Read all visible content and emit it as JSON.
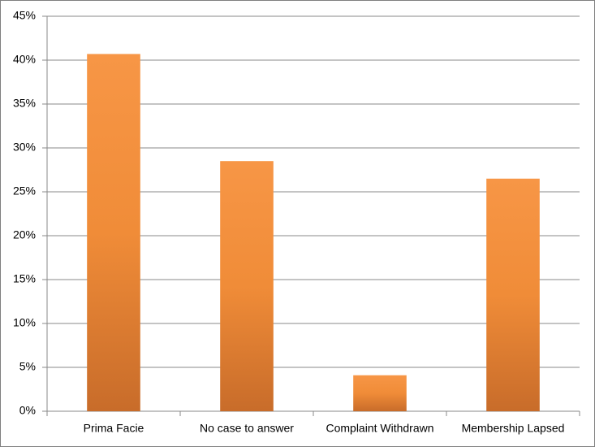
{
  "chart_data": {
    "type": "bar",
    "categories": [
      "Prima Facie",
      "No case to answer",
      "Complaint Withdrawn",
      "Membership Lapsed"
    ],
    "values": [
      40.7,
      28.5,
      4.1,
      26.5
    ],
    "color": "#f79646",
    "ylim": [
      0,
      45
    ],
    "yticks": [
      {
        "value": 0,
        "label": "0%"
      },
      {
        "value": 5,
        "label": "5%"
      },
      {
        "value": 10,
        "label": "10%"
      },
      {
        "value": 15,
        "label": "15%"
      },
      {
        "value": 20,
        "label": "20%"
      },
      {
        "value": 25,
        "label": "25%"
      },
      {
        "value": 30,
        "label": "30%"
      },
      {
        "value": 35,
        "label": "35%"
      },
      {
        "value": 40,
        "label": "40%"
      },
      {
        "value": 45,
        "label": "45%"
      }
    ],
    "grid": true
  }
}
